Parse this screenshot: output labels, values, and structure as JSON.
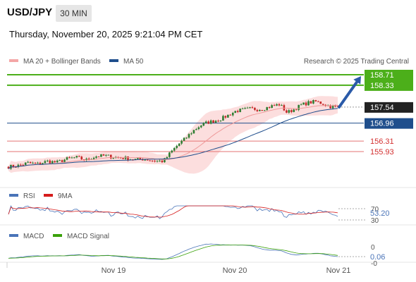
{
  "header": {
    "symbol": "USD/JPY",
    "interval": "30 MIN",
    "timestamp": "Thursday, November 20, 2025 9:21:04 PM CET"
  },
  "legend": {
    "bollinger": "MA 20 + Bollinger Bands",
    "ma50": "MA 50",
    "credit": "Research © 2025 Trading Central",
    "rsi": "RSI",
    "rsi_ma": "9MA",
    "macd": "MACD",
    "macd_signal": "MACD Signal"
  },
  "colors": {
    "candle_up": "#2e7d32",
    "candle_down": "#c62828",
    "bollinger_band": "#fbd3d3",
    "ma20": "#ef9a9a",
    "ma50": "#1f4e8c",
    "resistance": "#4caf1a",
    "pivot": "#1f4e8c",
    "support": "#e57373",
    "current": "#222222",
    "arrow": "#2a5aa8"
  },
  "chart_data": [
    {
      "type": "candlestick",
      "x_labels": [
        "Nov 19",
        "Nov 20",
        "Nov 21"
      ],
      "ylim": [
        155.3,
        159.1
      ],
      "levels": [
        {
          "value": 158.71,
          "label": "158.71",
          "kind": "resistance"
        },
        {
          "value": 158.33,
          "label": "158.33",
          "kind": "resistance"
        },
        {
          "value": 157.54,
          "label": "157.54",
          "kind": "current"
        },
        {
          "value": 156.96,
          "label": "156.96",
          "kind": "pivot"
        },
        {
          "value": 156.31,
          "label": "156.31",
          "kind": "support"
        },
        {
          "value": 155.93,
          "label": "155.93",
          "kind": "support"
        }
      ],
      "close_path": [
        [
          0,
          155.38
        ],
        [
          8,
          155.42
        ],
        [
          16,
          155.52
        ],
        [
          24,
          155.48
        ],
        [
          32,
          155.58
        ],
        [
          40,
          155.54
        ],
        [
          48,
          155.66
        ],
        [
          56,
          155.72
        ],
        [
          64,
          155.62
        ],
        [
          72,
          155.76
        ],
        [
          80,
          155.78
        ],
        [
          88,
          155.72
        ],
        [
          96,
          155.7
        ],
        [
          104,
          155.64
        ],
        [
          112,
          155.66
        ],
        [
          120,
          155.6
        ],
        [
          128,
          155.58
        ],
        [
          134,
          155.9
        ],
        [
          140,
          156.18
        ],
        [
          146,
          156.4
        ],
        [
          152,
          156.66
        ],
        [
          158,
          156.86
        ],
        [
          164,
          156.98
        ],
        [
          170,
          157.04
        ],
        [
          176,
          157.12
        ],
        [
          182,
          157.26
        ],
        [
          188,
          157.4
        ],
        [
          194,
          157.44
        ],
        [
          200,
          157.48
        ],
        [
          206,
          157.46
        ],
        [
          212,
          157.5
        ],
        [
          218,
          157.58
        ],
        [
          224,
          157.64
        ],
        [
          230,
          157.34
        ],
        [
          236,
          157.46
        ],
        [
          242,
          157.62
        ],
        [
          248,
          157.7
        ],
        [
          254,
          157.74
        ],
        [
          260,
          157.66
        ],
        [
          266,
          157.56
        ],
        [
          272,
          157.54
        ]
      ],
      "projection": {
        "from": 157.54,
        "to": 158.71
      }
    },
    {
      "type": "line",
      "title": "RSI",
      "ticks": [
        30,
        70
      ],
      "latest_value": 53.2,
      "latest_label": "53.20"
    },
    {
      "type": "line",
      "title": "MACD",
      "ticks": [
        0
      ],
      "latest_value": 0.06,
      "latest_label": "0.06"
    }
  ],
  "labels": {
    "rsi_tick_top": "70",
    "rsi_tick_bottom": "30",
    "macd_tick_top": "0",
    "macd_tick_bottom": "-0"
  }
}
